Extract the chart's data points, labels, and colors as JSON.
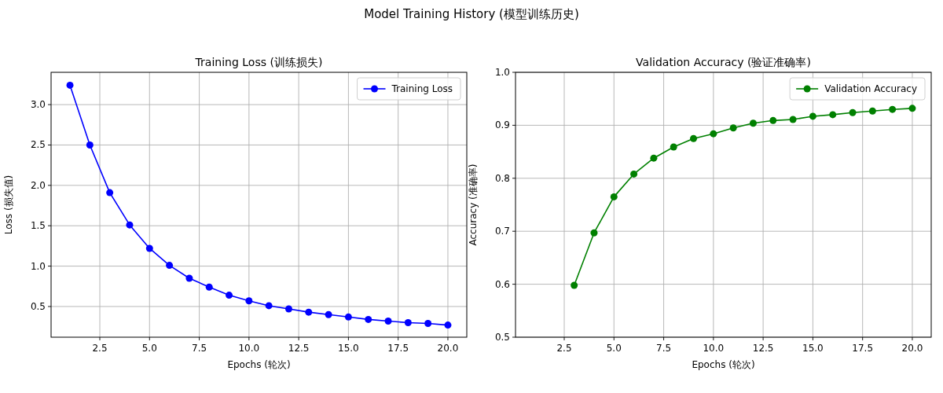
{
  "chart_data": [
    {
      "type": "other",
      "title": "Model Training History (模型训练历史)"
    },
    {
      "type": "line",
      "title": "Training Loss (训练损失)",
      "xlabel": "Epochs (轮次)",
      "ylabel": "Loss (损失值)",
      "x": [
        1,
        2,
        3,
        4,
        5,
        6,
        7,
        8,
        9,
        10,
        11,
        12,
        13,
        14,
        15,
        16,
        17,
        18,
        19,
        20
      ],
      "series": [
        {
          "name": "Training Loss",
          "color": "#0000ff",
          "values": [
            3.24,
            2.5,
            1.91,
            1.51,
            1.22,
            1.01,
            0.85,
            0.74,
            0.64,
            0.57,
            0.51,
            0.47,
            0.43,
            0.4,
            0.37,
            0.34,
            0.32,
            0.3,
            0.29,
            0.27
          ]
        }
      ],
      "xlim": [
        0.05,
        20.95
      ],
      "ylim": [
        0.12,
        3.4
      ],
      "xticks": [
        {
          "value": 2.5,
          "label": "2.5"
        },
        {
          "value": 5,
          "label": "5.0"
        },
        {
          "value": 7.5,
          "label": "7.5"
        },
        {
          "value": 10,
          "label": "10.0"
        },
        {
          "value": 12.5,
          "label": "12.5"
        },
        {
          "value": 15,
          "label": "15.0"
        },
        {
          "value": 17.5,
          "label": "17.5"
        },
        {
          "value": 20,
          "label": "20.0"
        }
      ],
      "yticks": [
        {
          "value": 0.5,
          "label": "0.5"
        },
        {
          "value": 1,
          "label": "1.0"
        },
        {
          "value": 1.5,
          "label": "1.5"
        },
        {
          "value": 2,
          "label": "2.0"
        },
        {
          "value": 2.5,
          "label": "2.5"
        },
        {
          "value": 3,
          "label": "3.0"
        }
      ],
      "grid": true,
      "legend": "top right",
      "marker": "circle"
    },
    {
      "type": "line",
      "title": "Validation Accuracy (验证准确率)",
      "xlabel": "Epochs (轮次)",
      "ylabel": "Accuracy (准确率)",
      "series": [
        {
          "name": "Validation Accuracy",
          "color": "#008000",
          "x": [
            3,
            4,
            5,
            6,
            7,
            8,
            9,
            10,
            11,
            12,
            13,
            14,
            15,
            16,
            17,
            18,
            19,
            20
          ],
          "values": [
            0.598,
            0.697,
            0.765,
            0.808,
            0.838,
            0.859,
            0.875,
            0.884,
            0.895,
            0.904,
            0.909,
            0.911,
            0.917,
            0.92,
            0.924,
            0.927,
            0.93,
            0.932
          ]
        }
      ],
      "xlim": [
        0.05,
        20.95
      ],
      "ylim": [
        0.5,
        1.0
      ],
      "xticks": [
        {
          "value": 2.5,
          "label": "2.5"
        },
        {
          "value": 5,
          "label": "5.0"
        },
        {
          "value": 7.5,
          "label": "7.5"
        },
        {
          "value": 10,
          "label": "10.0"
        },
        {
          "value": 12.5,
          "label": "12.5"
        },
        {
          "value": 15,
          "label": "15.0"
        },
        {
          "value": 17.5,
          "label": "17.5"
        },
        {
          "value": 20,
          "label": "20.0"
        }
      ],
      "yticks": [
        {
          "value": 0.5,
          "label": "0.5"
        },
        {
          "value": 0.6,
          "label": "0.6"
        },
        {
          "value": 0.7,
          "label": "0.7"
        },
        {
          "value": 0.8,
          "label": "0.8"
        },
        {
          "value": 0.9,
          "label": "0.9"
        },
        {
          "value": 1,
          "label": "1.0"
        }
      ],
      "grid": true,
      "legend": "top right",
      "marker": "circle"
    }
  ]
}
